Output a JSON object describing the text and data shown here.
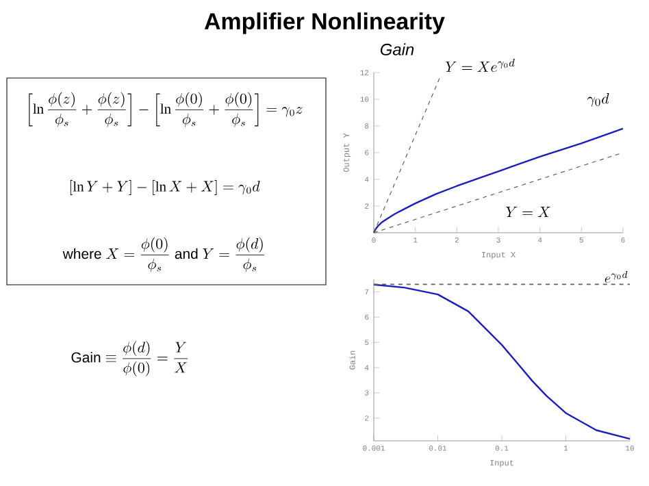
{
  "chart_data": [
    {
      "type": "other",
      "title": "Amplifier Nonlinearity",
      "subtitle": "Gain",
      "annotations": [
        "\\left[\\ln\\frac{\\phi(z)}{\\phi_s}+\\frac{\\phi(z)}{\\phi_s}\\right]-\\left[\\ln\\frac{\\phi(0)}{\\phi_s}+\\frac{\\phi(0)}{\\phi_s}\\right]=\\gamma_0 z",
        "\\left[\\ln Y+Y\\right]-\\left[\\ln X+X\\right]=\\gamma_0 d",
        "\\mbox{where } X=\\frac{\\phi(0)}{\\phi_s}\\mbox{ and } Y=\\frac{\\phi(d)}{\\phi_s}",
        "\\mbox{Gain}\\equiv\\frac{\\phi(d)}{\\phi(0)}=\\frac{Y}{X}"
      ]
    },
    {
      "type": "line",
      "xlabel": "Input X",
      "ylabel": "Output Y",
      "xlim": [
        0,
        6
      ],
      "ylim": [
        0,
        12
      ],
      "xticks": [
        0,
        1,
        2,
        3,
        4,
        5,
        6
      ],
      "yticks": [
        {
          "value": 0,
          "label": null
        },
        2,
        4,
        6,
        8,
        10,
        12
      ],
      "series": [
        {
          "color": "#1c1cc0",
          "line_style": "solid",
          "x": [
            0,
            0.05,
            0.1,
            0.2,
            0.3,
            0.5,
            0.75,
            1,
            1.5,
            2,
            3,
            4,
            5,
            6
          ],
          "values": [
            0,
            0.3,
            0.5,
            0.8,
            1.0,
            1.4,
            1.8,
            2.2,
            2.9,
            3.5,
            4.6,
            5.7,
            6.7,
            7.8
          ]
        },
        {
          "color": "#606060",
          "line_style": "dashed",
          "x": [
            0,
            6
          ],
          "values": [
            0,
            6
          ]
        },
        {
          "color": "#606060",
          "line_style": "dashed",
          "x": [
            0,
            1.6
          ],
          "values": [
            0,
            11.7
          ]
        }
      ],
      "annotations": [
        {
          "text": "Y = X e^{\\gamma_0 d}",
          "x": 1.6,
          "y": 11.7
        },
        "Y = X",
        "\\gamma_0 d"
      ]
    },
    {
      "type": "line",
      "log": "x",
      "xlabel": "Input",
      "ylabel": "Gain",
      "xlim": [
        0.001,
        10
      ],
      "ylim": [
        1.1,
        7.5
      ],
      "xticks": [
        0.001,
        0.01,
        0.1,
        1,
        10
      ],
      "yticks": [
        2,
        3,
        4,
        5,
        6,
        7
      ],
      "series": [
        {
          "color": "#1c1cc0",
          "line_style": "solid",
          "x": [
            0.001,
            0.003,
            0.01,
            0.03,
            0.1,
            0.2,
            0.3,
            0.5,
            1,
            3,
            10
          ],
          "values": [
            7.29,
            7.17,
            6.9,
            6.23,
            4.9,
            4.0,
            3.47,
            2.88,
            2.2,
            1.52,
            1.18
          ]
        }
      ],
      "ref_lines": [
        {
          "axis": "y",
          "value": 7.3,
          "label": "e^{\\gamma_0 d}",
          "color": "#606060",
          "line_style": "dashed"
        }
      ]
    }
  ]
}
